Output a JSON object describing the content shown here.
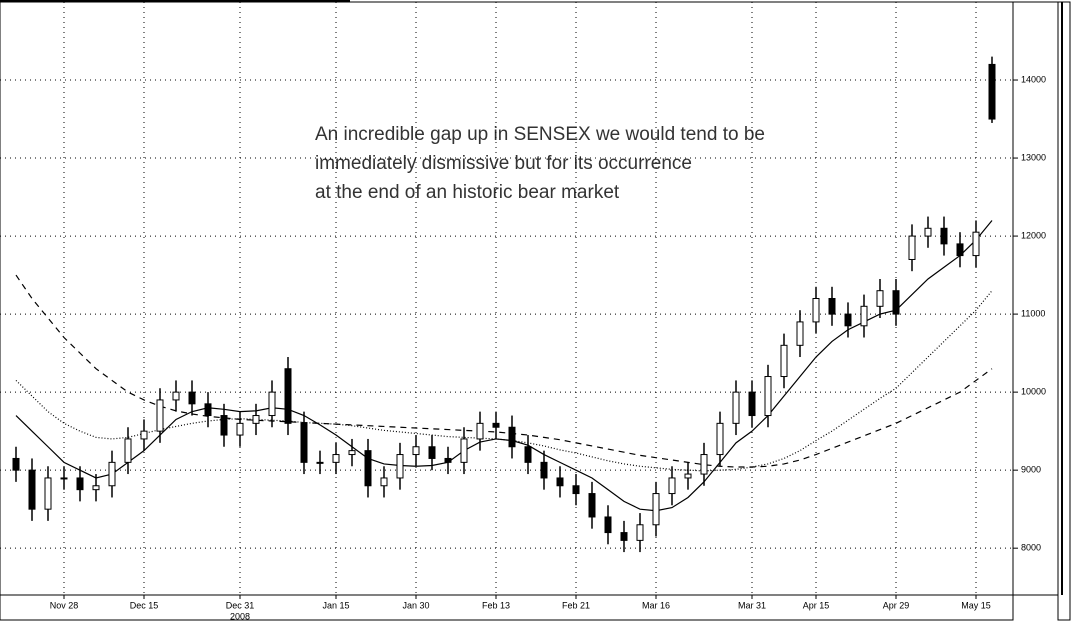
{
  "chart_data": {
    "type": "candlestick",
    "annotation": [
      "An incredible gap up in SENSEX we would tend to be",
      "immediately dismissive but for its occurrence",
      "at the end of an historic bear market"
    ],
    "categories": [
      null,
      null,
      null,
      "Nov 28",
      null,
      null,
      null,
      null,
      "Dec 15",
      null,
      null,
      null,
      null,
      null,
      "Dec 31",
      null,
      null,
      null,
      null,
      null,
      "Jan 15",
      null,
      null,
      null,
      null,
      "Jan 30",
      null,
      null,
      null,
      null,
      "Feb 13",
      null,
      null,
      null,
      null,
      "Feb 21",
      null,
      null,
      null,
      null,
      "Mar 16",
      null,
      null,
      null,
      null,
      null,
      "Mar 31",
      null,
      null,
      null,
      "Apr 15",
      null,
      null,
      null,
      null,
      "Apr 29",
      null,
      null,
      null,
      null,
      "May 15",
      null
    ],
    "year_label": "2008",
    "open": [
      9150,
      9000,
      8500,
      8900,
      8900,
      8750,
      8800,
      9100,
      9400,
      9500,
      9900,
      10000,
      9850,
      9700,
      9450,
      9600,
      9700,
      10300,
      9600,
      9100,
      9100,
      9200,
      9250,
      8800,
      8900,
      9200,
      9300,
      9150,
      9100,
      9400,
      9600,
      9550,
      9300,
      9100,
      8900,
      8800,
      8700,
      8400,
      8200,
      8100,
      8300,
      8700,
      8900,
      8950,
      9200,
      9600,
      10000,
      9700,
      10200,
      10600,
      10900,
      11200,
      11000,
      10850,
      11100,
      11300,
      11700,
      12000,
      12100,
      11900,
      11750,
      14200
    ],
    "high": [
      9300,
      9150,
      9050,
      9050,
      9050,
      8950,
      9250,
      9550,
      9650,
      10050,
      10150,
      10150,
      10000,
      9850,
      9750,
      9850,
      10150,
      10450,
      9750,
      9250,
      9350,
      9400,
      9400,
      9050,
      9350,
      9450,
      9450,
      9300,
      9550,
      9750,
      9750,
      9700,
      9450,
      9250,
      9050,
      8950,
      8850,
      8550,
      8350,
      8450,
      8850,
      9050,
      9100,
      9350,
      9750,
      10150,
      10150,
      10350,
      10750,
      11050,
      11350,
      11350,
      11150,
      11250,
      11450,
      11450,
      12150,
      12250,
      12250,
      12050,
      12200,
      14300
    ],
    "low": [
      8850,
      8350,
      8350,
      8750,
      8600,
      8600,
      8650,
      8950,
      9250,
      9350,
      9750,
      9700,
      9550,
      9300,
      9300,
      9450,
      9550,
      9450,
      8950,
      8950,
      8950,
      9050,
      8650,
      8650,
      8750,
      9050,
      9000,
      8950,
      8950,
      9250,
      9400,
      9150,
      8950,
      8750,
      8650,
      8550,
      8250,
      8050,
      7950,
      7950,
      8150,
      8550,
      8750,
      8800,
      9050,
      9450,
      9550,
      9550,
      10050,
      10450,
      10750,
      10850,
      10700,
      10700,
      10950,
      10850,
      11550,
      11850,
      11750,
      11600,
      11600,
      13450
    ],
    "close": [
      9000,
      8500,
      8900,
      8900,
      8750,
      8800,
      9100,
      9400,
      9500,
      9900,
      10000,
      9850,
      9700,
      9450,
      9600,
      9700,
      10000,
      9600,
      9100,
      9100,
      9200,
      9250,
      8800,
      8900,
      9200,
      9300,
      9150,
      9100,
      9400,
      9600,
      9550,
      9300,
      9100,
      8900,
      8800,
      8700,
      8400,
      8200,
      8100,
      8300,
      8700,
      8900,
      8950,
      9200,
      9600,
      10000,
      9700,
      10200,
      10600,
      10900,
      11200,
      11000,
      10850,
      11100,
      11300,
      11000,
      12000,
      12100,
      11900,
      11750,
      12050,
      13500
    ],
    "series": [
      {
        "style": "solid",
        "color": "#000000",
        "values": [
          9700,
          9500,
          9300,
          9100,
          9000,
          8900,
          8950,
          9100,
          9250,
          9450,
          9650,
          9750,
          9800,
          9780,
          9750,
          9760,
          9800,
          9780,
          9700,
          9580,
          9450,
          9300,
          9150,
          9080,
          9060,
          9050,
          9060,
          9100,
          9250,
          9360,
          9400,
          9380,
          9320,
          9200,
          9100,
          9000,
          8900,
          8750,
          8600,
          8500,
          8480,
          8520,
          8650,
          8850,
          9100,
          9350,
          9500,
          9700,
          9950,
          10200,
          10450,
          10650,
          10800,
          10900,
          11000,
          11050,
          11250,
          11450,
          11600,
          11750,
          11950,
          12200
        ]
      },
      {
        "style": "dotted",
        "color": "#000000",
        "values": [
          10150,
          9950,
          9750,
          9600,
          9500,
          9420,
          9400,
          9420,
          9470,
          9520,
          9560,
          9600,
          9630,
          9650,
          9660,
          9650,
          9640,
          9630,
          9610,
          9600,
          9590,
          9570,
          9540,
          9510,
          9490,
          9470,
          9450,
          9430,
          9420,
          9410,
          9400,
          9380,
          9350,
          9310,
          9260,
          9220,
          9170,
          9120,
          9080,
          9050,
          9030,
          9010,
          9000,
          8990,
          9000,
          9010,
          9040,
          9080,
          9150,
          9250,
          9380,
          9500,
          9640,
          9780,
          9920,
          10050,
          10250,
          10450,
          10650,
          10850,
          11050,
          11300
        ]
      },
      {
        "style": "dashed",
        "color": "#000000",
        "values": [
          11500,
          11200,
          10950,
          10700,
          10500,
          10300,
          10150,
          10000,
          9900,
          9820,
          9760,
          9720,
          9690,
          9670,
          9650,
          9640,
          9630,
          9620,
          9610,
          9600,
          9590,
          9580,
          9570,
          9560,
          9550,
          9540,
          9530,
          9520,
          9510,
          9500,
          9490,
          9470,
          9450,
          9420,
          9390,
          9350,
          9310,
          9270,
          9230,
          9190,
          9160,
          9130,
          9100,
          9070,
          9050,
          9040,
          9040,
          9050,
          9080,
          9130,
          9200,
          9280,
          9360,
          9440,
          9520,
          9600,
          9700,
          9800,
          9900,
          10000,
          10150,
          10300
        ]
      }
    ],
    "ylim": [
      7400,
      15000
    ],
    "yticks": [
      8000,
      9000,
      10000,
      11000,
      12000,
      13000,
      14000
    ],
    "grid": true,
    "axis_side": "right"
  }
}
